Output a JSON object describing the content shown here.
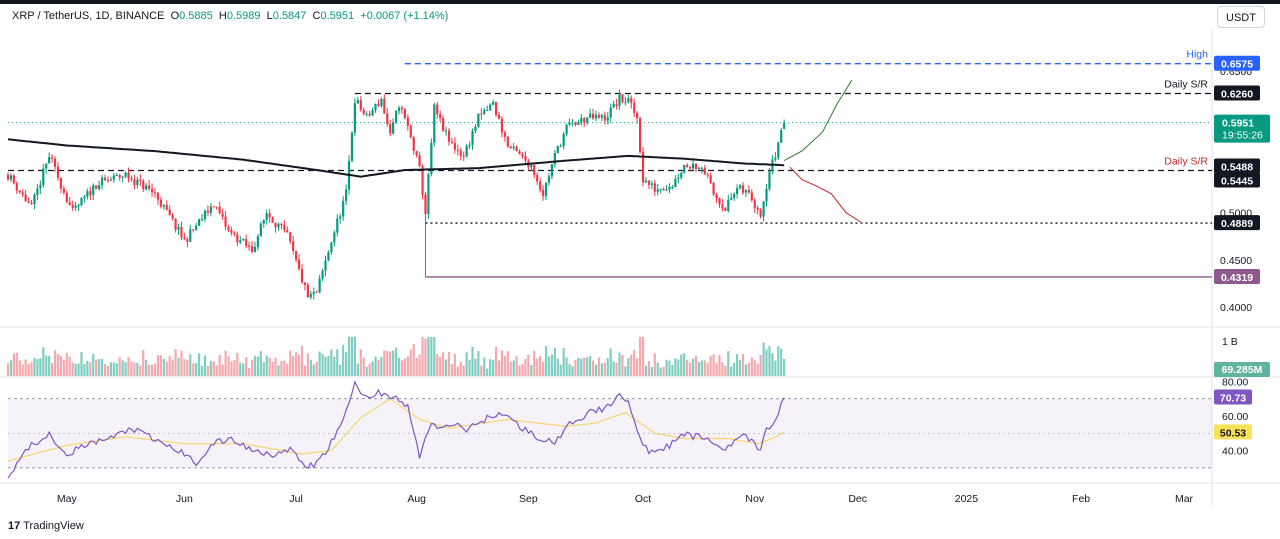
{
  "header": {
    "symbol": "XRP / TetherUS, 1D, BINANCE",
    "o_label": "O",
    "o_value": "0.5885",
    "h_label": "H",
    "h_value": "0.5989",
    "l_label": "L",
    "l_value": "0.5847",
    "c_label": "C",
    "c_value": "0.5951",
    "change": "+0.0067 (+1.14%)"
  },
  "currency_button": "USDT",
  "branding": "TradingView",
  "colors": {
    "up": "#089981",
    "down": "#f23645",
    "volume_up": "#80cdc1",
    "volume_down": "#f5a8ad",
    "sma": "#131722",
    "rsi": "#7e57c2",
    "rsi_ma": "#f5d76e",
    "high": "#2962ff",
    "projection_up": "#2e7d32",
    "projection_down": "#c62828",
    "support_low": "#8e5a8e"
  },
  "chart_data": [
    {
      "type": "candlestick",
      "title": "XRP / TetherUS, 1D, BINANCE",
      "x_labels": [
        "May",
        "Jun",
        "Jul",
        "Aug",
        "Sep",
        "Oct",
        "Nov",
        "Dec",
        "2025",
        "Feb",
        "Mar"
      ],
      "y_ticks": [
        "0.4000",
        "0.4500",
        "0.5000",
        "0.6500"
      ],
      "ylim": [
        0.38,
        0.672
      ],
      "series": [
        {
          "name": "candles",
          "anchors": [
            [
              0,
              0.54
            ],
            [
              8,
              0.505
            ],
            [
              14,
              0.56
            ],
            [
              22,
              0.5
            ],
            [
              30,
              0.53
            ],
            [
              40,
              0.54
            ],
            [
              50,
              0.52
            ],
            [
              60,
              0.47
            ],
            [
              70,
              0.51
            ],
            [
              75,
              0.48
            ],
            [
              83,
              0.46
            ],
            [
              88,
              0.5
            ],
            [
              95,
              0.475
            ],
            [
              102,
              0.41
            ],
            [
              105,
              0.415
            ],
            [
              110,
              0.47
            ],
            [
              115,
              0.52
            ],
            [
              118,
              0.62
            ],
            [
              122,
              0.6
            ],
            [
              127,
              0.62
            ],
            [
              130,
              0.58
            ],
            [
              133,
              0.615
            ],
            [
              136,
              0.59
            ],
            [
              140,
              0.545
            ],
            [
              142,
              0.5
            ],
            [
              145,
              0.61
            ],
            [
              150,
              0.575
            ],
            [
              155,
              0.56
            ],
            [
              160,
              0.6
            ],
            [
              165,
              0.615
            ],
            [
              170,
              0.57
            ],
            [
              178,
              0.55
            ],
            [
              182,
              0.52
            ],
            [
              186,
              0.56
            ],
            [
              190,
              0.59
            ],
            [
              197,
              0.6
            ],
            [
              203,
              0.6
            ],
            [
              208,
              0.62
            ],
            [
              211,
              0.618
            ],
            [
              214,
              0.6
            ],
            [
              216,
              0.535
            ],
            [
              220,
              0.525
            ],
            [
              226,
              0.53
            ],
            [
              230,
              0.55
            ],
            [
              236,
              0.55
            ],
            [
              240,
              0.52
            ],
            [
              244,
              0.505
            ],
            [
              248,
              0.525
            ],
            [
              252,
              0.52
            ],
            [
              256,
              0.5
            ],
            [
              259,
              0.545
            ],
            [
              261,
              0.56
            ],
            [
              263,
              0.588
            ],
            [
              264,
              0.5951
            ]
          ]
        },
        {
          "name": "sma",
          "anchors": [
            [
              0,
              0.5775
            ],
            [
              20,
              0.571
            ],
            [
              50,
              0.565
            ],
            [
              80,
              0.556
            ],
            [
              105,
              0.545
            ],
            [
              120,
              0.538
            ],
            [
              135,
              0.545
            ],
            [
              160,
              0.547
            ],
            [
              190,
              0.555
            ],
            [
              211,
              0.56
            ],
            [
              230,
              0.557
            ],
            [
              250,
              0.552
            ],
            [
              265,
              0.55
            ]
          ]
        }
      ],
      "levels": [
        {
          "value": 0.6575,
          "label": "0.6575",
          "title": "High",
          "style": "dashed",
          "color": "#2962ff"
        },
        {
          "value": 0.626,
          "label": "0.6260",
          "title": "Daily S/R",
          "style": "dashed",
          "color": "#131722"
        },
        {
          "value": 0.5445,
          "label": "0.5445",
          "title": "Daily S/R",
          "style": "dashed",
          "color": "#131722"
        },
        {
          "value": 0.4889,
          "label": "0.4889",
          "title": "",
          "style": "dotted",
          "color": "#131722"
        },
        {
          "value": 0.4319,
          "label": "0.4319",
          "title": "",
          "style": "solid",
          "color": "#8e5a8e"
        }
      ],
      "price_labels": [
        {
          "value": 0.5951,
          "label": "0.5951",
          "sub": "19:55:26",
          "color": "#089981"
        },
        {
          "value": 0.5488,
          "label": "0.5488",
          "sub": "",
          "color": "#131722"
        }
      ],
      "projections": {
        "up": [
          [
            264,
            0.555
          ],
          [
            270,
            0.565
          ],
          [
            277,
            0.585
          ],
          [
            282,
            0.615
          ],
          [
            287,
            0.64
          ]
        ],
        "down": [
          [
            266,
            0.548
          ],
          [
            270,
            0.535
          ],
          [
            275,
            0.528
          ],
          [
            280,
            0.52
          ],
          [
            285,
            0.5
          ],
          [
            290,
            0.49
          ]
        ]
      },
      "right_marks": [
        {
          "value": 0.6525,
          "label": "0.6500"
        }
      ]
    },
    {
      "type": "bar",
      "title": "Volume",
      "y_ticks": [
        "1 B"
      ],
      "last_label": "69.285M",
      "ylim": [
        0,
        1.1
      ]
    },
    {
      "type": "line",
      "title": "RSI",
      "y_ticks": [
        "80.00",
        "60.00",
        "40.00"
      ],
      "ylim": [
        23,
        82
      ],
      "bands": [
        70,
        30
      ],
      "midline": 50,
      "rsi_label": "70.73",
      "ma_label": "50.53",
      "series": [
        {
          "name": "rsi",
          "anchors": [
            [
              0,
              24
            ],
            [
              4,
              36
            ],
            [
              8,
              43
            ],
            [
              14,
              50
            ],
            [
              20,
              38
            ],
            [
              28,
              44
            ],
            [
              36,
              48
            ],
            [
              42,
              53
            ],
            [
              50,
              46
            ],
            [
              58,
              40
            ],
            [
              64,
              33
            ],
            [
              70,
              44
            ],
            [
              76,
              47
            ],
            [
              82,
              41
            ],
            [
              90,
              38
            ],
            [
              96,
              40
            ],
            [
              102,
              30
            ],
            [
              106,
              34
            ],
            [
              110,
              45
            ],
            [
              114,
              57
            ],
            [
              118,
              79
            ],
            [
              122,
              70
            ],
            [
              126,
              74
            ],
            [
              132,
              70
            ],
            [
              136,
              65
            ],
            [
              140,
              37
            ],
            [
              144,
              56
            ],
            [
              148,
              52
            ],
            [
              152,
              56
            ],
            [
              156,
              52
            ],
            [
              162,
              58
            ],
            [
              168,
              62
            ],
            [
              174,
              54
            ],
            [
              180,
              48
            ],
            [
              186,
              44
            ],
            [
              192,
              57
            ],
            [
              198,
              62
            ],
            [
              204,
              65
            ],
            [
              208,
              74
            ],
            [
              211,
              68
            ],
            [
              214,
              50
            ],
            [
              218,
              40
            ],
            [
              224,
              42
            ],
            [
              230,
              49
            ],
            [
              236,
              48
            ],
            [
              240,
              44
            ],
            [
              244,
              41
            ],
            [
              248,
              48
            ],
            [
              252,
              47
            ],
            [
              256,
              40
            ],
            [
              258,
              52
            ],
            [
              261,
              57
            ],
            [
              263,
              67
            ],
            [
              264,
              70.73
            ]
          ]
        },
        {
          "name": "rsi_ma",
          "anchors": [
            [
              0,
              34
            ],
            [
              20,
              43
            ],
            [
              40,
              48
            ],
            [
              60,
              44
            ],
            [
              80,
              44
            ],
            [
              100,
              38
            ],
            [
              110,
              40
            ],
            [
              120,
              59
            ],
            [
              130,
              70
            ],
            [
              140,
              58
            ],
            [
              150,
              53
            ],
            [
              170,
              58
            ],
            [
              190,
              54
            ],
            [
              200,
              56
            ],
            [
              210,
              62
            ],
            [
              220,
              50
            ],
            [
              230,
              47
            ],
            [
              245,
              47
            ],
            [
              255,
              44
            ],
            [
              260,
              47
            ],
            [
              264,
              50.53
            ]
          ]
        }
      ]
    }
  ]
}
